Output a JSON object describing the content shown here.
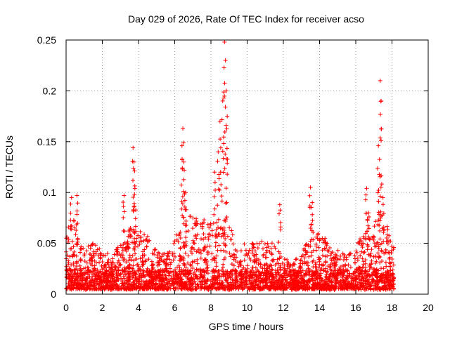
{
  "chart_data": {
    "type": "scatter",
    "title": "Day 029 of 2026, Rate Of TEC Index for receiver acso",
    "xlabel": "GPS time / hours",
    "ylabel": "ROTI / TECUs",
    "xlim": [
      0,
      20
    ],
    "ylim": [
      0,
      0.25
    ],
    "grid": true,
    "marker": "+",
    "x_ticks": [
      0,
      2,
      4,
      6,
      8,
      10,
      12,
      14,
      16,
      18,
      20
    ],
    "x_tick_labels": [
      "0",
      "2",
      "4",
      "6",
      "8",
      "10",
      "12",
      "14",
      "16",
      "18",
      "20"
    ],
    "y_ticks": [
      0,
      0.05,
      0.1,
      0.15,
      0.2,
      0.25
    ],
    "y_tick_labels": [
      "0",
      "0.05",
      "0.1",
      "0.15",
      "0.2",
      "0.25"
    ],
    "series": [
      {
        "name": "ROTI",
        "color": "#ff0000",
        "x_range_hours": [
          0,
          18.1
        ],
        "baseline_band": [
          0.005,
          0.035
        ],
        "notable_points": [
          {
            "x": 0.3,
            "y": 0.095
          },
          {
            "x": 0.6,
            "y": 0.097
          },
          {
            "x": 3.2,
            "y": 0.097
          },
          {
            "x": 3.7,
            "y": 0.144
          },
          {
            "x": 3.75,
            "y": 0.13
          },
          {
            "x": 3.8,
            "y": 0.104
          },
          {
            "x": 6.45,
            "y": 0.163
          },
          {
            "x": 6.4,
            "y": 0.146
          },
          {
            "x": 6.5,
            "y": 0.13
          },
          {
            "x": 6.6,
            "y": 0.1
          },
          {
            "x": 8.2,
            "y": 0.12
          },
          {
            "x": 8.4,
            "y": 0.14
          },
          {
            "x": 8.5,
            "y": 0.17
          },
          {
            "x": 8.65,
            "y": 0.19
          },
          {
            "x": 8.75,
            "y": 0.248
          },
          {
            "x": 8.8,
            "y": 0.23
          },
          {
            "x": 8.85,
            "y": 0.2
          },
          {
            "x": 8.9,
            "y": 0.175
          },
          {
            "x": 11.8,
            "y": 0.088
          },
          {
            "x": 13.5,
            "y": 0.105
          },
          {
            "x": 13.6,
            "y": 0.09
          },
          {
            "x": 14.3,
            "y": 0.055
          },
          {
            "x": 16.6,
            "y": 0.104
          },
          {
            "x": 16.7,
            "y": 0.08
          },
          {
            "x": 17.25,
            "y": 0.146
          },
          {
            "x": 17.35,
            "y": 0.21
          },
          {
            "x": 17.4,
            "y": 0.19
          },
          {
            "x": 17.5,
            "y": 0.095
          }
        ]
      }
    ]
  }
}
